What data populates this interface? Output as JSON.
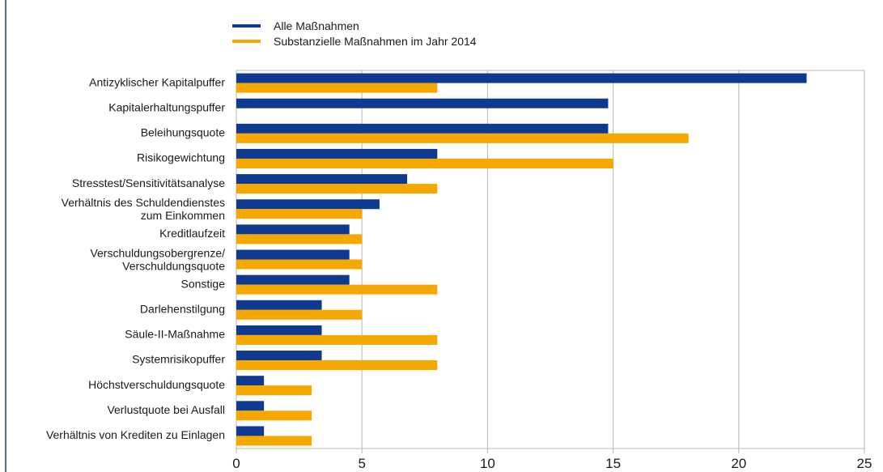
{
  "colors": {
    "series1": "#0f3a8f",
    "series2": "#f5a800",
    "grid": "#b8b8b8",
    "frame_left": "#4a6f98"
  },
  "chart_data": {
    "type": "bar",
    "orientation": "horizontal",
    "title": "",
    "xlabel": "",
    "ylabel": "",
    "xlim": [
      0,
      25
    ],
    "ticks": [
      "0",
      "5",
      "10",
      "15",
      "20",
      "25"
    ],
    "grid": true,
    "legend_position": "top",
    "categories": [
      [
        "Antizyklischer Kapitalpuffer"
      ],
      [
        "Kapitalerhaltungspuffer"
      ],
      [
        "Beleihungsquote"
      ],
      [
        "Risikogewichtung"
      ],
      [
        "Stresstest/Sensitivitätsanalyse"
      ],
      [
        "Verhältnis des Schuldendienstes",
        "zum Einkommen"
      ],
      [
        "Kreditlaufzeit"
      ],
      [
        "Verschuldungsobergrenze/",
        "Verschuldungsquote"
      ],
      [
        "Sonstige"
      ],
      [
        "Darlehenstilgung"
      ],
      [
        "Säule-II-Maßnahme"
      ],
      [
        "Systemrisikopuffer"
      ],
      [
        "Höchstverschuldungsquote"
      ],
      [
        "Verlustquote bei Ausfall"
      ],
      [
        "Verhältnis von Krediten zu Einlagen"
      ]
    ],
    "series": [
      {
        "name": "Alle Maßnahmen",
        "values": [
          22.7,
          14.8,
          14.8,
          8.0,
          6.8,
          5.7,
          4.5,
          4.5,
          4.5,
          3.4,
          3.4,
          3.4,
          1.1,
          1.1,
          1.1
        ]
      },
      {
        "name": "Substanzielle Maßnahmen im Jahr 2014",
        "values": [
          8.0,
          0,
          18.0,
          15.0,
          8.0,
          5.0,
          5.0,
          5.0,
          8.0,
          5.0,
          8.0,
          8.0,
          3.0,
          3.0,
          3.0
        ]
      }
    ]
  }
}
